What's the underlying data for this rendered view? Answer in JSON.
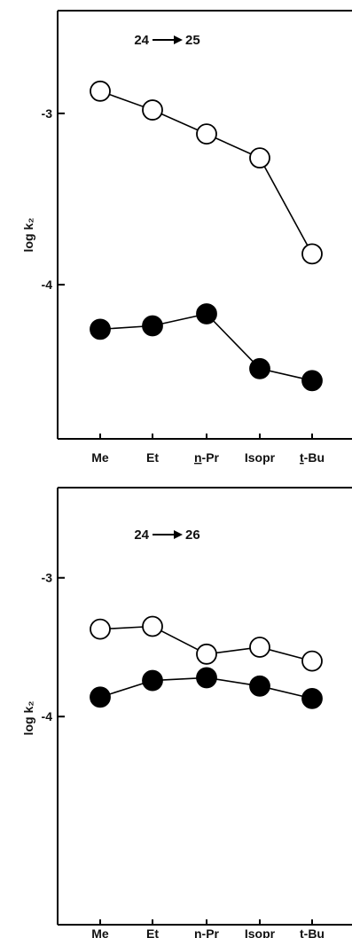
{
  "chart_data": [
    {
      "type": "line",
      "title": "24 ⟶ 25",
      "title_parts": [
        "24",
        "25"
      ],
      "xlabel": "",
      "ylabel": "log k₂",
      "categories": [
        "Me",
        "Et",
        "n-Pr",
        "Isopr",
        "t-Bu"
      ],
      "category_prefix": [
        "",
        "",
        "n",
        "",
        "t"
      ],
      "category_suffix": [
        "Me",
        "Et",
        "-Pr",
        "Isopr",
        "-Bu"
      ],
      "ylim": [
        -4.9,
        -2.4
      ],
      "yticks": [
        -3,
        -4
      ],
      "ytick_labels": [
        "-3",
        "-4"
      ],
      "grid": false,
      "series": [
        {
          "marker": "open-circle",
          "values": [
            -2.87,
            -2.98,
            -3.12,
            -3.26,
            -3.82
          ]
        },
        {
          "marker": "filled-circle",
          "values": [
            -4.26,
            -4.24,
            -4.17,
            -4.49,
            -4.56
          ]
        }
      ],
      "colors": {
        "open": "#ffffff",
        "filled": "#000000",
        "stroke": "#000000"
      }
    },
    {
      "type": "line",
      "title": "24 ⟶ 26",
      "title_parts": [
        "24",
        "26"
      ],
      "xlabel": "",
      "ylabel": "log k₂",
      "categories": [
        "Me",
        "Et",
        "n-Pr",
        "Isopr",
        "t-Bu"
      ],
      "category_prefix": [
        "",
        "",
        "n",
        "",
        ""
      ],
      "category_suffix": [
        "Me",
        "Et",
        "-Pr",
        "Isopr",
        "t-Bu"
      ],
      "ylim": [
        -5.5,
        -2.35
      ],
      "yticks": [
        -3,
        -4
      ],
      "ytick_labels": [
        "-3",
        "-4"
      ],
      "grid": false,
      "series": [
        {
          "marker": "open-circle",
          "values": [
            -3.37,
            -3.35,
            -3.55,
            -3.5,
            -3.6
          ]
        },
        {
          "marker": "filled-circle",
          "values": [
            -3.86,
            -3.74,
            -3.72,
            -3.78,
            -3.87
          ]
        }
      ],
      "colors": {
        "open": "#ffffff",
        "filled": "#000000",
        "stroke": "#000000"
      }
    }
  ]
}
